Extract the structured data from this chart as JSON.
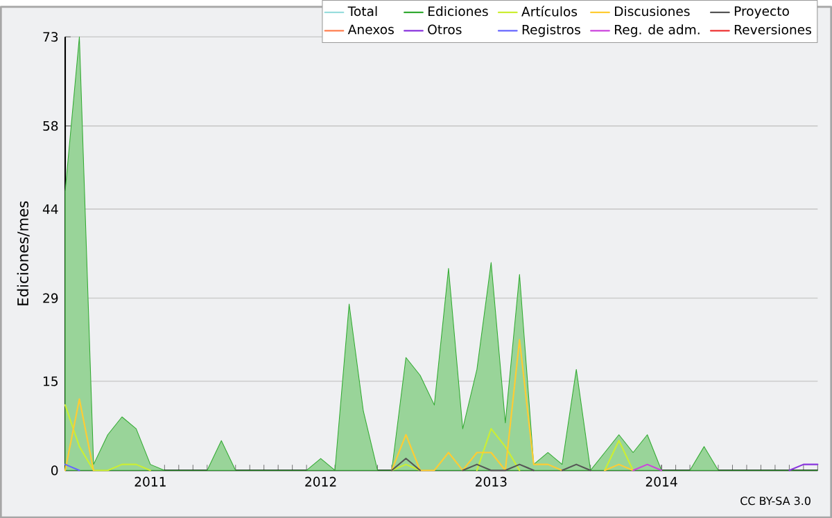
{
  "chart_data": {
    "type": "line",
    "ylabel": "Ediciones/mes",
    "annotations": [
      "CC BY-SA 3.0"
    ],
    "x": [
      "2010-07",
      "2010-08",
      "2010-09",
      "2010-10",
      "2010-11",
      "2010-12",
      "2011-01",
      "2011-02",
      "2011-03",
      "2011-04",
      "2011-05",
      "2011-06",
      "2011-07",
      "2011-08",
      "2011-09",
      "2011-10",
      "2011-11",
      "2011-12",
      "2012-01",
      "2012-02",
      "2012-03",
      "2012-04",
      "2012-05",
      "2012-06",
      "2012-07",
      "2012-08",
      "2012-09",
      "2012-10",
      "2012-11",
      "2012-12",
      "2013-01",
      "2013-02",
      "2013-03",
      "2013-04",
      "2013-05",
      "2013-06",
      "2013-07",
      "2013-08",
      "2013-09",
      "2013-10",
      "2013-11",
      "2013-12",
      "2014-01",
      "2014-02",
      "2014-03",
      "2014-04",
      "2014-05",
      "2014-06",
      "2014-07",
      "2014-08",
      "2014-09",
      "2014-10",
      "2014-11",
      "2014-12"
    ],
    "xlim": [
      "2010-07",
      "2014-12"
    ],
    "xticks": [
      {
        "value": "2011-01",
        "label": "2011"
      },
      {
        "value": "2012-01",
        "label": "2012"
      },
      {
        "value": "2013-01",
        "label": "2013"
      },
      {
        "value": "2014-01",
        "label": "2014"
      }
    ],
    "ylim": [
      0,
      73
    ],
    "yticks": [
      0,
      15,
      29,
      44,
      58,
      73
    ],
    "grid": "y",
    "legend": "top right",
    "marker": "none",
    "line_style": "solid",
    "series": [
      {
        "name": "Total",
        "color": "#99dddd",
        "values": [
          null,
          null,
          null,
          null,
          null,
          null,
          null,
          null,
          null,
          null,
          null,
          null,
          null,
          null,
          null,
          null,
          null,
          null,
          null,
          null,
          null,
          null,
          null,
          null,
          null,
          null,
          null,
          null,
          null,
          null,
          null,
          null,
          null,
          null,
          null,
          null,
          null,
          null,
          null,
          null,
          null,
          null,
          null,
          null,
          null,
          null,
          null,
          null,
          null,
          null,
          null,
          null,
          null,
          null
        ]
      },
      {
        "name": "Ediciones",
        "color": "#33aa33",
        "type": "area",
        "values": [
          47,
          73,
          1,
          6,
          9,
          7,
          1,
          0,
          0,
          0,
          0,
          5,
          0,
          0,
          0,
          0,
          0,
          0,
          2,
          0,
          28,
          10,
          0,
          0,
          19,
          16,
          11,
          34,
          7,
          17,
          35,
          8,
          33,
          1,
          3,
          1,
          17,
          0,
          3,
          6,
          3,
          6,
          0,
          0,
          0,
          4,
          0,
          0,
          0,
          0,
          0,
          0,
          0,
          0
        ]
      },
      {
        "name": "Artículos",
        "color": "#ccee33",
        "values": [
          11,
          4,
          0,
          0,
          1,
          1,
          0,
          null,
          null,
          null,
          null,
          null,
          null,
          null,
          null,
          null,
          null,
          null,
          null,
          null,
          null,
          null,
          null,
          0,
          1,
          0,
          null,
          null,
          null,
          0,
          7,
          4,
          0,
          null,
          null,
          null,
          null,
          null,
          0,
          5,
          0,
          null,
          null,
          null,
          null,
          null,
          null,
          null,
          null,
          null,
          null,
          null,
          null,
          null
        ]
      },
      {
        "name": "Discusiones",
        "color": "#ffcc33",
        "values": [
          0,
          12,
          0,
          null,
          null,
          null,
          null,
          null,
          null,
          null,
          null,
          null,
          null,
          null,
          null,
          null,
          null,
          null,
          null,
          null,
          null,
          null,
          null,
          0,
          6,
          0,
          0,
          3,
          0,
          3,
          3,
          0,
          22,
          1,
          1,
          0,
          null,
          null,
          0,
          1,
          0,
          null,
          null,
          null,
          null,
          null,
          null,
          null,
          null,
          null,
          null,
          null,
          null,
          null
        ]
      },
      {
        "name": "Proyecto",
        "color": "#555555",
        "values": [
          null,
          null,
          null,
          null,
          null,
          null,
          null,
          null,
          null,
          null,
          null,
          null,
          null,
          null,
          null,
          null,
          null,
          null,
          null,
          null,
          null,
          null,
          null,
          0,
          2,
          0,
          null,
          null,
          0,
          1,
          0,
          0,
          1,
          0,
          null,
          0,
          1,
          0,
          null,
          null,
          null,
          null,
          null,
          null,
          null,
          null,
          null,
          null,
          null,
          null,
          null,
          null,
          null,
          null
        ]
      },
      {
        "name": "Anexos",
        "color": "#ff7f50",
        "values": [
          null,
          null,
          null,
          null,
          null,
          null,
          null,
          null,
          null,
          null,
          null,
          null,
          null,
          null,
          null,
          null,
          null,
          null,
          null,
          null,
          null,
          null,
          null,
          null,
          null,
          null,
          null,
          null,
          null,
          null,
          null,
          null,
          null,
          null,
          null,
          null,
          null,
          null,
          null,
          null,
          null,
          null,
          null,
          null,
          null,
          null,
          null,
          null,
          null,
          null,
          null,
          null,
          null,
          null
        ]
      },
      {
        "name": "Otros",
        "color": "#8833dd",
        "values": [
          null,
          null,
          null,
          null,
          null,
          null,
          null,
          null,
          null,
          null,
          null,
          null,
          null,
          null,
          null,
          null,
          null,
          null,
          null,
          null,
          null,
          null,
          null,
          null,
          null,
          null,
          null,
          null,
          null,
          null,
          null,
          null,
          null,
          null,
          null,
          null,
          null,
          null,
          null,
          null,
          null,
          null,
          null,
          null,
          null,
          null,
          null,
          null,
          null,
          null,
          null,
          0,
          1,
          1
        ]
      },
      {
        "name": "Registros",
        "color": "#6666ff",
        "values": [
          1,
          0,
          null,
          null,
          null,
          null,
          null,
          null,
          null,
          null,
          null,
          null,
          null,
          null,
          null,
          null,
          null,
          null,
          null,
          null,
          null,
          null,
          null,
          null,
          null,
          null,
          null,
          null,
          null,
          null,
          null,
          null,
          null,
          null,
          null,
          null,
          null,
          null,
          null,
          null,
          null,
          null,
          null,
          null,
          null,
          null,
          null,
          null,
          null,
          null,
          null,
          null,
          null,
          null
        ]
      },
      {
        "name": "Reg. de adm.",
        "color": "#cc44dd",
        "values": [
          null,
          null,
          null,
          null,
          null,
          null,
          null,
          null,
          null,
          null,
          null,
          null,
          null,
          null,
          null,
          null,
          null,
          null,
          null,
          null,
          null,
          null,
          null,
          null,
          null,
          null,
          null,
          null,
          null,
          null,
          null,
          null,
          null,
          null,
          null,
          null,
          null,
          null,
          null,
          null,
          0,
          1,
          0,
          null,
          null,
          null,
          null,
          null,
          null,
          null,
          null,
          null,
          null,
          null
        ]
      },
      {
        "name": "Reversiones",
        "color": "#ee3333",
        "values": [
          null,
          null,
          null,
          null,
          null,
          null,
          null,
          null,
          null,
          null,
          null,
          null,
          null,
          null,
          null,
          null,
          null,
          null,
          null,
          null,
          null,
          null,
          null,
          null,
          null,
          null,
          null,
          null,
          null,
          null,
          null,
          null,
          null,
          null,
          null,
          null,
          null,
          null,
          null,
          null,
          null,
          null,
          null,
          null,
          null,
          null,
          null,
          null,
          null,
          null,
          null,
          null,
          null,
          null
        ]
      }
    ]
  }
}
